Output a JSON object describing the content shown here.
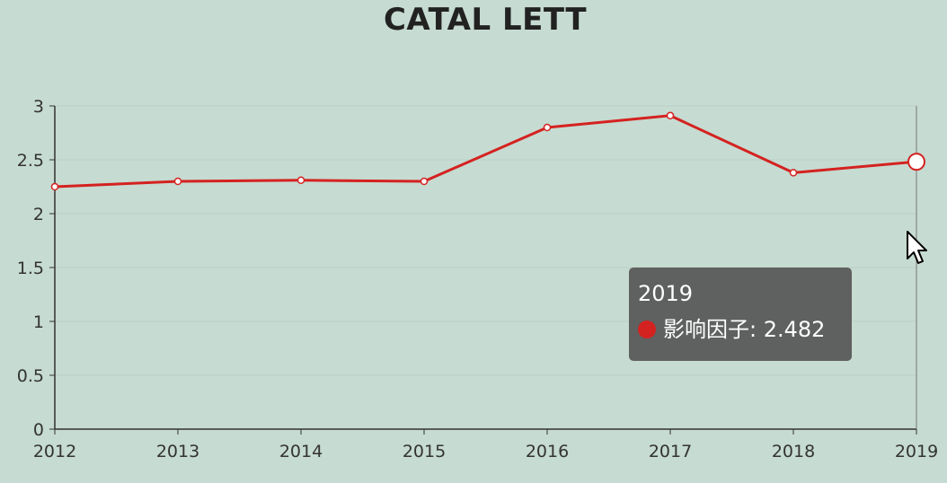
{
  "chart_data": {
    "type": "line",
    "title": "CATAL LETT",
    "x": [
      "2012",
      "2013",
      "2014",
      "2015",
      "2016",
      "2017",
      "2018",
      "2019"
    ],
    "series": [
      {
        "name": "影响因子",
        "values": [
          2.25,
          2.3,
          2.31,
          2.3,
          2.8,
          2.91,
          2.38,
          2.482
        ],
        "color": "#d42220"
      }
    ],
    "ylim": [
      0,
      3
    ],
    "yticks": [
      "0",
      "0.5",
      "1",
      "1.5",
      "2",
      "2.5",
      "3"
    ],
    "grid": true,
    "highlighted_index": 7
  },
  "tooltip": {
    "title": "2019",
    "series_label": "影响因子",
    "value_text": "2.482"
  },
  "icons": {
    "cursor": "mouse-pointer-icon"
  }
}
